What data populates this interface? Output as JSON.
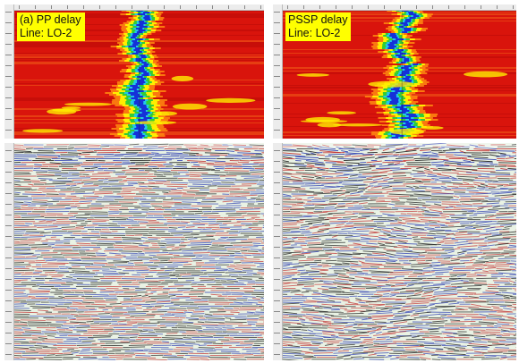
{
  "panels": {
    "pp": {
      "title": "(a) PP delay",
      "line": "Line: LO-2"
    },
    "pssp": {
      "title": "PSSP delay",
      "line": "Line: LO-2"
    }
  },
  "colors": {
    "heatmap_background": "#d9140c",
    "heatmap_yellow": "#ffee00",
    "heatmap_green": "#33cc33",
    "heatmap_cyan": "#22c8e8",
    "heatmap_blue": "#1530d8",
    "label_background": "#ffff00",
    "seismic_red": "#c23030",
    "seismic_blue": "#2b3bb0",
    "seismic_background": "#e9f2e4"
  }
}
